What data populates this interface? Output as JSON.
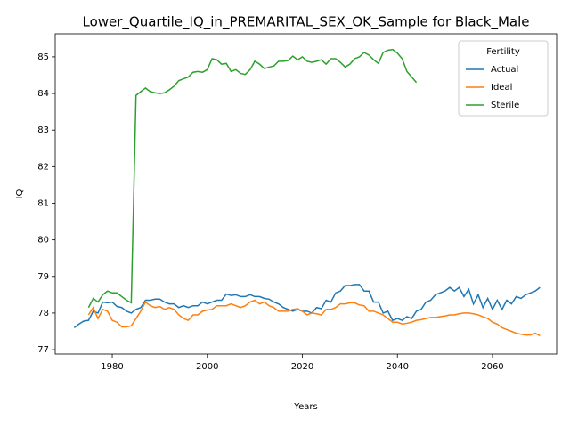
{
  "chart_data": {
    "type": "line",
    "title": "Lower_Quartile_IQ_in_PREMARITAL_SEX_OK_Sample for Black_Male",
    "x_label": "Years",
    "y_label": "IQ",
    "x": [
      1972,
      1973,
      1974,
      1975,
      1976,
      1977,
      1978,
      1979,
      1980,
      1981,
      1982,
      1983,
      1984,
      1985,
      1986,
      1987,
      1988,
      1989,
      1990,
      1991,
      1992,
      1993,
      1994,
      1995,
      1996,
      1997,
      1998,
      1999,
      2000,
      2001,
      2002,
      2003,
      2004,
      2005,
      2006,
      2007,
      2008,
      2009,
      2010,
      2011,
      2012,
      2013,
      2014,
      2015,
      2016,
      2017,
      2018,
      2019,
      2020,
      2021,
      2022,
      2023,
      2024,
      2025,
      2026,
      2027,
      2028,
      2029,
      2030,
      2031,
      2032,
      2033,
      2034,
      2035,
      2036,
      2037,
      2038,
      2039,
      2040,
      2041,
      2042,
      2043,
      2044,
      2045,
      2046,
      2047,
      2048,
      2049,
      2050,
      2051,
      2052,
      2053,
      2054,
      2055,
      2056,
      2057,
      2058,
      2059,
      2060,
      2061,
      2062,
      2063,
      2064,
      2065,
      2066,
      2067,
      2068,
      2069,
      2070
    ],
    "series": [
      {
        "name": "Actual",
        "color": "#1f77b4",
        "values": [
          77.6,
          77.7,
          77.78,
          77.8,
          78.05,
          78.0,
          78.3,
          78.28,
          78.3,
          78.18,
          78.15,
          78.05,
          78.0,
          78.1,
          78.15,
          78.35,
          78.35,
          78.38,
          78.38,
          78.3,
          78.25,
          78.25,
          78.15,
          78.2,
          78.15,
          78.2,
          78.2,
          78.3,
          78.25,
          78.3,
          78.35,
          78.35,
          78.52,
          78.48,
          78.5,
          78.45,
          78.45,
          78.5,
          78.45,
          78.45,
          78.4,
          78.38,
          78.3,
          78.25,
          78.15,
          78.1,
          78.05,
          78.1,
          78.05,
          78.05,
          78.0,
          78.15,
          78.12,
          78.35,
          78.3,
          78.55,
          78.6,
          78.75,
          78.75,
          78.78,
          78.78,
          78.6,
          78.6,
          78.3,
          78.3,
          78.0,
          78.05,
          77.8,
          77.85,
          77.8,
          77.9,
          77.85,
          78.05,
          78.1,
          78.3,
          78.35,
          78.5,
          78.55,
          78.6,
          78.7,
          78.6,
          78.7,
          78.45,
          78.65,
          78.25,
          78.5,
          78.15,
          78.4,
          78.1,
          78.35,
          78.1,
          78.35,
          78.25,
          78.45,
          78.4,
          78.5,
          78.55,
          78.6,
          78.7
        ]
      },
      {
        "name": "Ideal",
        "color": "#ff7f0e",
        "values": [
          null,
          null,
          null,
          77.95,
          78.15,
          77.85,
          78.1,
          78.05,
          77.8,
          77.75,
          77.62,
          77.62,
          77.65,
          77.85,
          78.05,
          78.3,
          78.2,
          78.15,
          78.18,
          78.1,
          78.15,
          78.1,
          77.95,
          77.85,
          77.8,
          77.95,
          77.95,
          78.05,
          78.08,
          78.1,
          78.2,
          78.2,
          78.2,
          78.25,
          78.2,
          78.15,
          78.2,
          78.3,
          78.35,
          78.25,
          78.3,
          78.2,
          78.15,
          78.05,
          78.05,
          78.05,
          78.1,
          78.12,
          78.05,
          77.95,
          78.0,
          77.98,
          77.95,
          78.1,
          78.1,
          78.15,
          78.25,
          78.25,
          78.28,
          78.28,
          78.22,
          78.2,
          78.05,
          78.05,
          78.0,
          77.95,
          77.85,
          77.75,
          77.75,
          77.7,
          77.72,
          77.75,
          77.8,
          77.82,
          77.85,
          77.88,
          77.88,
          77.9,
          77.92,
          77.95,
          77.95,
          77.98,
          78.0,
          78.0,
          77.98,
          77.95,
          77.9,
          77.85,
          77.75,
          77.7,
          77.6,
          77.55,
          77.5,
          77.45,
          77.42,
          77.4,
          77.4,
          77.45,
          77.38
        ]
      },
      {
        "name": "Sterile",
        "color": "#2ca02c",
        "values": [
          null,
          null,
          null,
          78.15,
          78.4,
          78.3,
          78.5,
          78.6,
          78.55,
          78.55,
          78.45,
          78.35,
          78.28,
          83.95,
          84.05,
          84.15,
          84.05,
          84.02,
          84.0,
          84.02,
          84.1,
          84.2,
          84.35,
          84.4,
          84.45,
          84.58,
          84.6,
          84.58,
          84.65,
          84.95,
          84.92,
          84.8,
          84.82,
          84.6,
          84.65,
          84.55,
          84.52,
          84.65,
          84.88,
          84.8,
          84.68,
          84.72,
          84.75,
          84.88,
          84.88,
          84.9,
          85.02,
          84.92,
          85.0,
          84.88,
          84.85,
          84.88,
          84.92,
          84.8,
          84.95,
          84.95,
          84.85,
          84.72,
          84.8,
          84.95,
          85.0,
          85.12,
          85.05,
          84.92,
          84.82,
          85.12,
          85.18,
          85.2,
          85.1,
          84.95,
          84.6,
          84.45,
          84.3,
          null,
          null,
          null,
          null,
          null,
          null,
          null,
          null,
          null,
          null,
          null,
          null,
          null,
          null,
          null,
          null,
          null,
          null,
          null,
          null,
          null,
          null,
          null,
          null,
          null,
          null
        ]
      }
    ],
    "xlim": [
      1968,
      2073.5
    ],
    "xticks": [
      1980,
      2000,
      2020,
      2040,
      2060
    ],
    "ylim": [
      76.88,
      85.63
    ],
    "yticks": [
      77,
      78,
      79,
      80,
      81,
      82,
      83,
      84,
      85
    ],
    "grid": false,
    "legend_title": "Fertility",
    "legend_loc": "upper right"
  }
}
